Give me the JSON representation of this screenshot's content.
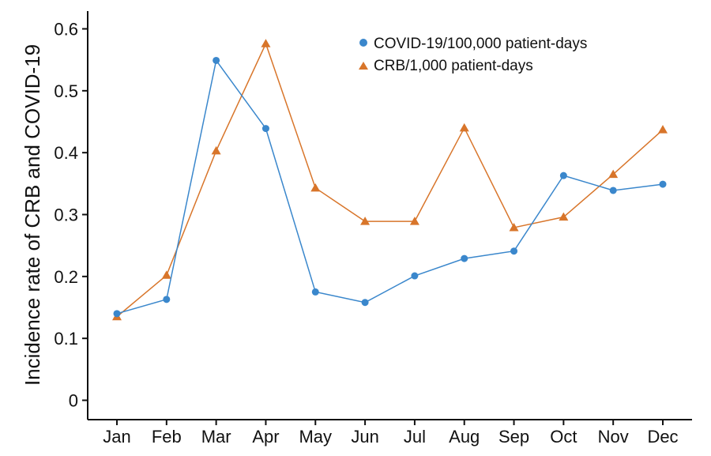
{
  "chart_data": {
    "type": "line",
    "title": "",
    "xlabel": "",
    "ylabel": "Incidence rate of CRB and COVID-19",
    "categories": [
      "Jan",
      "Feb",
      "Mar",
      "Apr",
      "May",
      "Jun",
      "Jul",
      "Aug",
      "Sep",
      "Oct",
      "Nov",
      "Dec"
    ],
    "ylim": [
      0,
      0.62
    ],
    "yticks": [
      0,
      0.1,
      0.2,
      0.3,
      0.4,
      0.5,
      0.6
    ],
    "ytick_labels": [
      "0",
      "0.1",
      "0.2",
      "0.3",
      "0.4",
      "0.5",
      "0.6"
    ],
    "grid": false,
    "legend_position": "top-right",
    "series": [
      {
        "name": "COVID-19/100,000 patient-days",
        "marker": "circle",
        "color": "#3a87cc",
        "values": [
          0.14,
          0.163,
          0.549,
          0.439,
          0.175,
          0.158,
          0.201,
          0.229,
          0.241,
          0.363,
          0.339,
          0.349
        ]
      },
      {
        "name": "CRB/1,000 patient-days",
        "marker": "triangle",
        "color": "#d8752a",
        "values": [
          0.135,
          0.202,
          0.403,
          0.576,
          0.343,
          0.289,
          0.289,
          0.44,
          0.279,
          0.296,
          0.365,
          0.437
        ]
      }
    ]
  }
}
